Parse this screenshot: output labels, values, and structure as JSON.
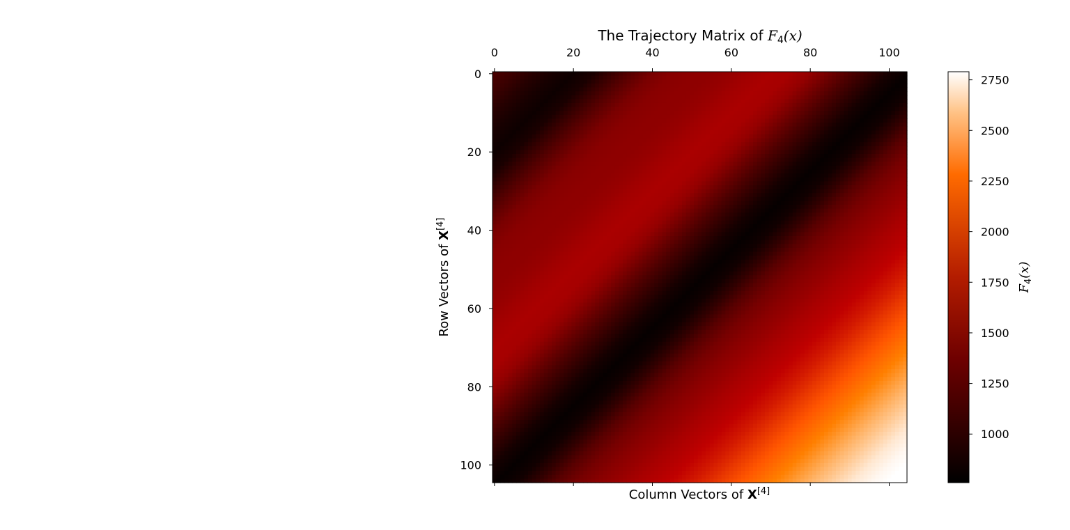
{
  "chart_data": {
    "type": "heatmap",
    "title": {
      "text": "The Trajectory Matrix of ",
      "math_symbol": "F",
      "math_sub": "4",
      "math_arg": "(x)"
    },
    "xlabel": {
      "text": "Column Vectors of ",
      "bold": "X",
      "sup": "[4]"
    },
    "ylabel": {
      "text": "Row Vectors of ",
      "bold": "X",
      "sup": "[4]"
    },
    "colorbar_label": {
      "math_symbol": "F",
      "math_sub": "4",
      "math_arg": "(x)"
    },
    "x_ticks": [
      0,
      20,
      40,
      60,
      80,
      100
    ],
    "y_ticks": [
      0,
      20,
      40,
      60,
      80,
      100
    ],
    "x_tick_position": "top",
    "y_axis_inverted": true,
    "rows": 105,
    "cols": 105,
    "value_range": [
      760,
      2790
    ],
    "colorbar_ticks": [
      1000,
      1250,
      1500,
      1750,
      2000,
      2250,
      2500,
      2750
    ],
    "colormap": "gist_heat",
    "structure": "Hankel trajectory matrix: cell (i, j) = F4(i + j); constant along anti-diagonals",
    "series_by_anti_diagonal_index": [
      [
        0,
        1150
      ],
      [
        5,
        1070
      ],
      [
        10,
        960
      ],
      [
        15,
        880
      ],
      [
        20,
        830
      ],
      [
        25,
        900
      ],
      [
        30,
        1080
      ],
      [
        35,
        1250
      ],
      [
        40,
        1400
      ],
      [
        45,
        1480
      ],
      [
        50,
        1510
      ],
      [
        55,
        1520
      ],
      [
        60,
        1560
      ],
      [
        65,
        1620
      ],
      [
        70,
        1660
      ],
      [
        75,
        1640
      ],
      [
        80,
        1540
      ],
      [
        85,
        1360
      ],
      [
        90,
        1180
      ],
      [
        95,
        1020
      ],
      [
        100,
        870
      ],
      [
        105,
        790
      ],
      [
        110,
        850
      ],
      [
        115,
        1020
      ],
      [
        120,
        1230
      ],
      [
        125,
        1380
      ],
      [
        130,
        1480
      ],
      [
        135,
        1560
      ],
      [
        140,
        1650
      ],
      [
        145,
        1720
      ],
      [
        150,
        1800
      ],
      [
        155,
        1880
      ],
      [
        160,
        1980
      ],
      [
        165,
        2080
      ],
      [
        170,
        2180
      ],
      [
        175,
        2280
      ],
      [
        180,
        2390
      ],
      [
        185,
        2500
      ],
      [
        190,
        2600
      ],
      [
        195,
        2700
      ],
      [
        200,
        2760
      ],
      [
        204,
        2790
      ]
    ]
  }
}
